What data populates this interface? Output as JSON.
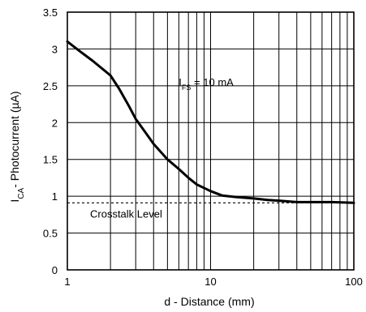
{
  "chart_data": {
    "type": "line",
    "xlabel": "d - Distance (mm)",
    "ylabel": {
      "prefix": "I",
      "subscript": "CA",
      "suffix": "- Photocurrent (µA)"
    },
    "x_scale": "log",
    "xlim": [
      1,
      100
    ],
    "ylim": [
      0,
      3.5
    ],
    "grid": true,
    "x_ticks": [
      {
        "value": 1,
        "label": "1"
      },
      {
        "value": 10,
        "label": "10"
      },
      {
        "value": 100,
        "label": "100"
      }
    ],
    "y_ticks": [
      {
        "value": 0,
        "label": "0"
      },
      {
        "value": 0.5,
        "label": "0.5"
      },
      {
        "value": 1,
        "label": "1"
      },
      {
        "value": 1.5,
        "label": "1.5"
      },
      {
        "value": 2,
        "label": "2"
      },
      {
        "value": 2.5,
        "label": "2.5"
      },
      {
        "value": 3,
        "label": "3"
      },
      {
        "value": 3.5,
        "label": "3.5"
      }
    ],
    "series": [
      {
        "x": [
          1,
          1.2,
          1.5,
          2,
          2.3,
          2.7,
          3,
          3.5,
          4,
          5,
          6,
          7,
          8,
          10,
          12,
          15,
          20,
          25,
          30,
          40,
          50,
          70,
          100
        ],
        "y": [
          3.1,
          2.98,
          2.84,
          2.64,
          2.46,
          2.22,
          2.05,
          1.87,
          1.71,
          1.5,
          1.37,
          1.25,
          1.16,
          1.07,
          1.01,
          0.99,
          0.97,
          0.95,
          0.94,
          0.92,
          0.92,
          0.92,
          0.91
        ]
      }
    ],
    "reference_line": {
      "y": 0.91,
      "label": "Crosstalk Level"
    },
    "annotation": {
      "prefix": "I",
      "subscript": "FS",
      "suffix": " = 10 mA",
      "x": 6,
      "y": 2.5
    }
  }
}
